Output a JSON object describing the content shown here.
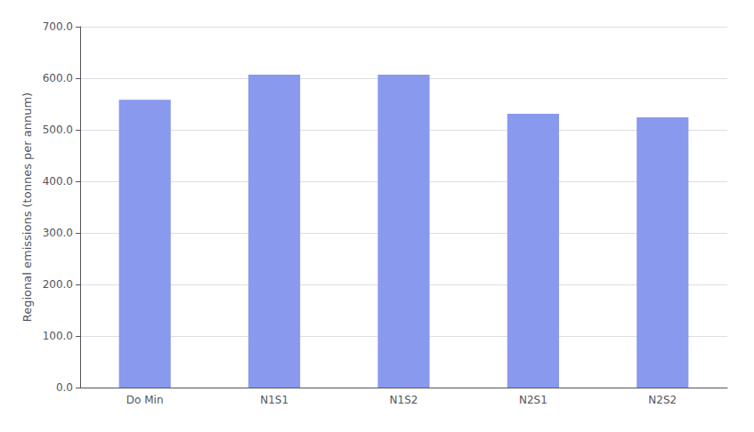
{
  "chart_data": {
    "type": "bar",
    "categories": [
      "Do Min",
      "N1S1",
      "N1S2",
      "N2S1",
      "N2S2"
    ],
    "values": [
      558,
      607,
      607,
      531,
      524
    ],
    "color": "#8899ee",
    "ylabel": "Regional emissions (tonnes per annum)",
    "ylim": [
      0,
      700
    ],
    "yticks": [
      {
        "value": 0,
        "label": "0.0"
      },
      {
        "value": 100,
        "label": "100.0"
      },
      {
        "value": 200,
        "label": "200.0"
      },
      {
        "value": 300,
        "label": "300.0"
      },
      {
        "value": 400,
        "label": "400.0"
      },
      {
        "value": 500,
        "label": "500.0"
      },
      {
        "value": 600,
        "label": "600.0"
      },
      {
        "value": 700,
        "label": "700.0"
      }
    ],
    "grid": true
  }
}
